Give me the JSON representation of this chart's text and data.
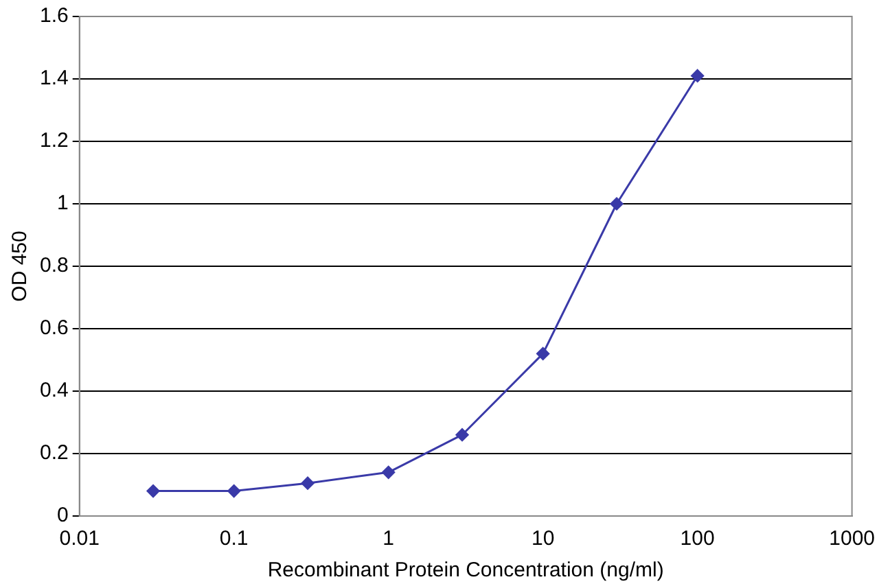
{
  "chart_data": {
    "type": "line",
    "xlabel": "Recombinant Protein Concentration (ng/ml)",
    "ylabel": "OD 450",
    "log": "x",
    "xlim": [
      0.01,
      1000
    ],
    "xticks": [
      0.01,
      0.1,
      1,
      10,
      100,
      1000
    ],
    "ylim": [
      0,
      1.6
    ],
    "yticks": [
      0,
      0.2,
      0.4,
      0.6,
      0.8,
      1,
      1.2,
      1.4,
      1.6
    ],
    "grid": "y",
    "marker": "diamond",
    "line_style": "solid",
    "x": [
      0.03,
      0.1,
      0.3,
      1,
      3,
      10,
      30,
      100
    ],
    "series": [
      {
        "color": "#3a3aa8",
        "values": [
          0.08,
          0.08,
          0.105,
          0.14,
          0.26,
          0.52,
          1.0,
          1.41
        ]
      }
    ]
  }
}
